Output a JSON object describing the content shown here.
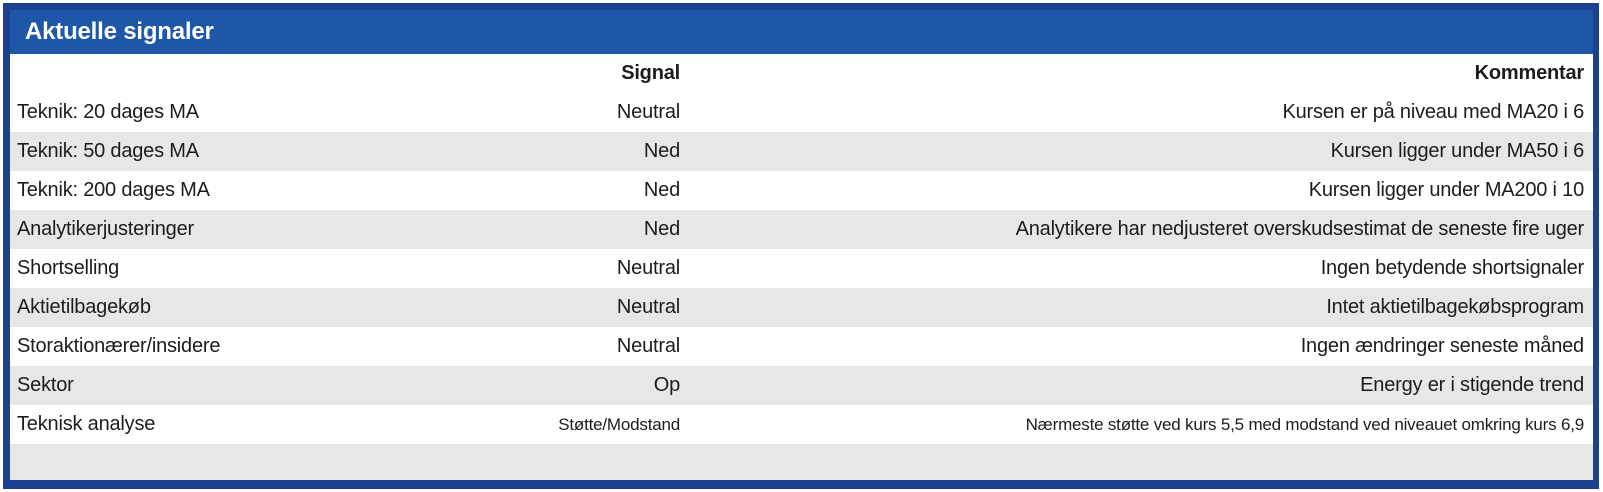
{
  "panel": {
    "title": "Aktuelle signaler"
  },
  "table": {
    "signal_header": "Signal",
    "comment_header": "Kommentar",
    "rows": [
      {
        "label": "Teknik: 20 dages MA",
        "signal": "Neutral",
        "comment": "Kursen er på niveau med MA20 i 6",
        "small": false
      },
      {
        "label": "Teknik: 50 dages MA",
        "signal": "Ned",
        "comment": "Kursen ligger under MA50 i 6",
        "small": false
      },
      {
        "label": "Teknik: 200 dages MA",
        "signal": "Ned",
        "comment": "Kursen ligger under MA200 i 10",
        "small": false
      },
      {
        "label": "Analytikerjusteringer",
        "signal": "Ned",
        "comment": "Analytikere har nedjusteret overskudsestimat de seneste fire uger",
        "small": false
      },
      {
        "label": "Shortselling",
        "signal": "Neutral",
        "comment": "Ingen betydende shortsignaler",
        "small": false
      },
      {
        "label": "Aktietilbagekøb",
        "signal": "Neutral",
        "comment": "Intet aktietilbagekøbsprogram",
        "small": false
      },
      {
        "label": "Storaktionærer/insidere",
        "signal": "Neutral",
        "comment": "Ingen ændringer seneste måned",
        "small": false
      },
      {
        "label": "Sektor",
        "signal": "Op",
        "comment": "Energy er i stigende trend",
        "small": false
      },
      {
        "label": "Teknisk analyse",
        "signal": "Støtte/Modstand",
        "comment": "Nærmeste støtte ved kurs 5,5 med modstand ved niveauet omkring kurs 6,9",
        "small": true
      }
    ]
  },
  "colors": {
    "frame": "#1d4190",
    "title_bg": "#1e56a8",
    "title_text": "#ffffff",
    "header_bg": "#cfd2da",
    "row_alt_bg": "#e7e7e7",
    "text": "#1c1c1c"
  }
}
